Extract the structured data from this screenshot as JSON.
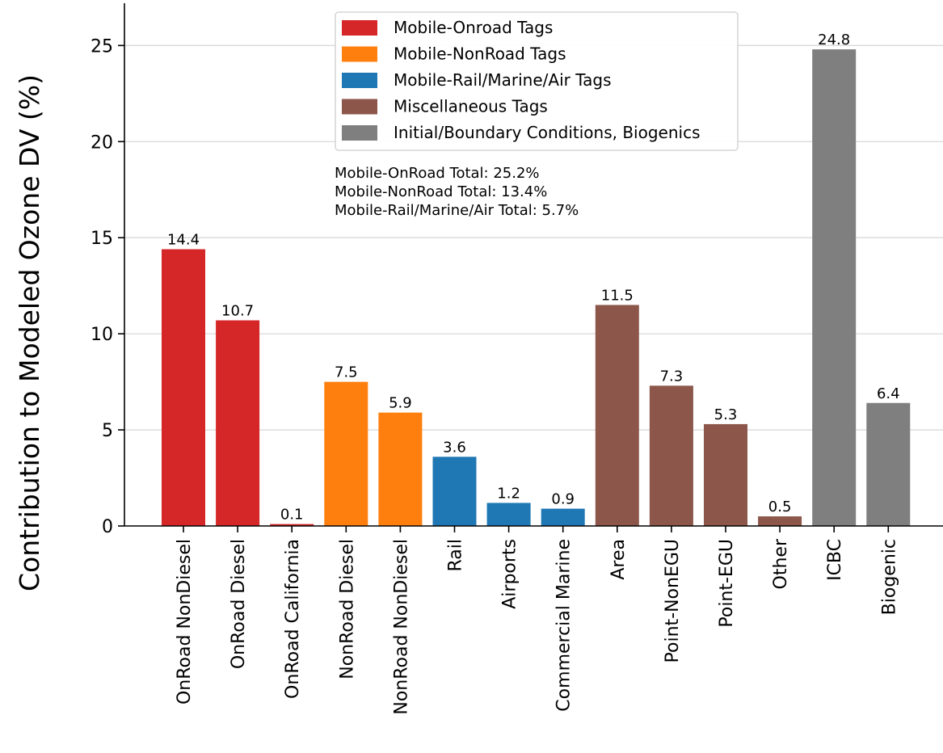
{
  "chart_data": {
    "type": "bar",
    "ylabel": "Contribution to Modeled Ozone DV (%)",
    "xlabel": "",
    "ylim": [
      0,
      27.2
    ],
    "yticks": [
      0,
      5,
      10,
      15,
      20,
      25
    ],
    "grid": "horizontal",
    "legend_position": "top-center",
    "categories": [
      "OnRoad NonDiesel",
      "OnRoad Diesel",
      "OnRoad California",
      "NonRoad Diesel",
      "NonRoad NonDiesel",
      "Rail",
      "Airports",
      "Commercial Marine",
      "Area",
      "Point-NonEGU",
      "Point-EGU",
      "Other",
      "ICBC",
      "Biogenic"
    ],
    "values": [
      14.4,
      10.7,
      0.1,
      7.5,
      5.9,
      3.6,
      1.2,
      0.9,
      11.5,
      7.3,
      5.3,
      0.5,
      24.8,
      6.4
    ],
    "value_labels": [
      "14.4",
      "10.7",
      "0.1",
      "7.5",
      "5.9",
      "3.6",
      "1.2",
      "0.9",
      "11.5",
      "7.3",
      "5.3",
      "0.5",
      "24.8",
      "6.4"
    ],
    "groups": [
      0,
      0,
      0,
      1,
      1,
      2,
      2,
      2,
      3,
      3,
      3,
      3,
      4,
      4
    ],
    "legend": [
      {
        "label": "Mobile-Onroad Tags",
        "color": "#d62728"
      },
      {
        "label": "Mobile-NonRoad Tags",
        "color": "#ff7f0e"
      },
      {
        "label": "Mobile-Rail/Marine/Air Tags",
        "color": "#1f77b4"
      },
      {
        "label": "Miscellaneous Tags",
        "color": "#8c564b"
      },
      {
        "label": "Initial/Boundary Conditions, Biogenics",
        "color": "#7f7f7f"
      }
    ],
    "annotations": [
      "Mobile-OnRoad Total: 25.2%",
      "Mobile-NonRoad Total: 13.4%",
      "Mobile-Rail/Marine/Air Total: 5.7%"
    ]
  }
}
